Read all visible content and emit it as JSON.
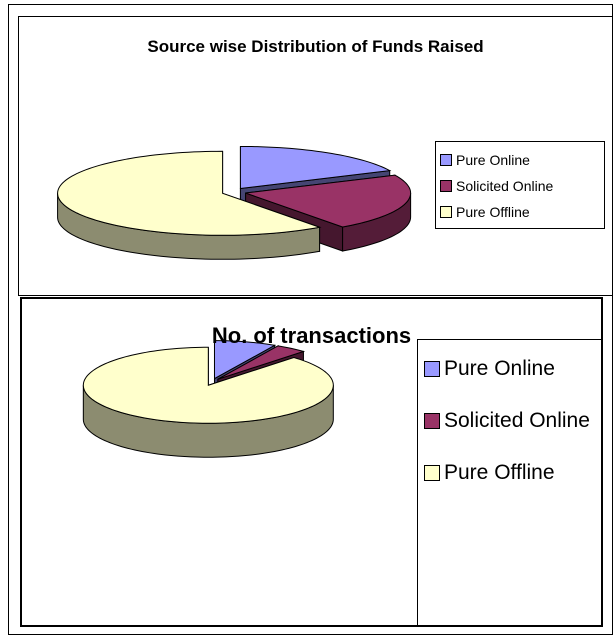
{
  "chart_data": [
    {
      "type": "pie",
      "title": "Source wise Distribution of Funds Raised",
      "categories": [
        "Pure Online",
        "Solicited Online",
        "Pure Offline"
      ],
      "values": [
        18,
        22,
        60
      ],
      "colors": [
        "#9999ff",
        "#993366",
        "#ffffcc"
      ]
    },
    {
      "type": "pie",
      "title": "No. of transactions",
      "categories": [
        "Pure Online",
        "Solicited Online",
        "Pure Offline"
      ],
      "values": [
        8,
        4,
        88
      ],
      "colors": [
        "#9999ff",
        "#993366",
        "#ffffcc"
      ]
    }
  ]
}
